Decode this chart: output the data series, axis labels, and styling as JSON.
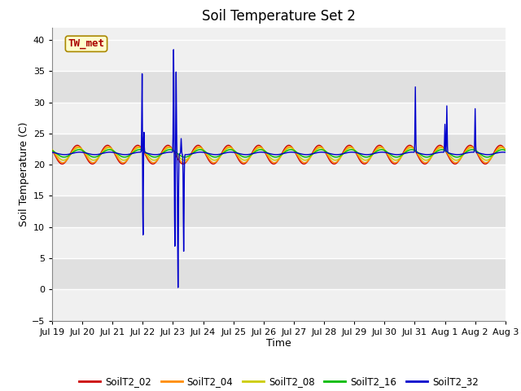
{
  "title": "Soil Temperature Set 2",
  "xlabel": "Time",
  "ylabel": "Soil Temperature (C)",
  "ylim": [
    -5,
    42
  ],
  "yticks": [
    -5,
    0,
    5,
    10,
    15,
    20,
    25,
    30,
    35,
    40
  ],
  "x_tick_labels": [
    "Jul 19",
    "Jul 20",
    "Jul 21",
    "Jul 22",
    "Jul 23",
    "Jul 24",
    "Jul 25",
    "Jul 26",
    "Jul 27",
    "Jul 28",
    "Jul 29",
    "Jul 30",
    "Jul 31",
    "Aug 1",
    "Aug 2",
    "Aug 3"
  ],
  "series_colors": {
    "SoilT2_02": "#cc0000",
    "SoilT2_04": "#ff8c00",
    "SoilT2_08": "#cccc00",
    "SoilT2_16": "#00bb00",
    "SoilT2_32": "#0000cc"
  },
  "annotation_text": "TW_met",
  "annotation_color": "#aa0000",
  "annotation_bg": "#ffffcc",
  "annotation_edge": "#aa8800",
  "plot_bg_light": "#f0f0f0",
  "plot_bg_dark": "#e0e0e0",
  "grid_color": "#ffffff",
  "title_fontsize": 12,
  "axis_label_fontsize": 9,
  "tick_fontsize": 8,
  "spike32_times": [
    71.5,
    72.2,
    72.8,
    96.5,
    97.5,
    98.5,
    100.0,
    102.5,
    104.5,
    288.5,
    312.0,
    313.5,
    336.0
  ],
  "spike32_vals": [
    13.5,
    -14.0,
    5.0,
    16.5,
    -15.0,
    13.0,
    -21.5,
    2.5,
    -15.5,
    10.5,
    4.5,
    7.5,
    7.0
  ],
  "spike32_widths": [
    0.25,
    0.3,
    0.25,
    0.25,
    0.28,
    0.25,
    0.3,
    0.25,
    0.28,
    0.25,
    0.25,
    0.25,
    0.25
  ]
}
